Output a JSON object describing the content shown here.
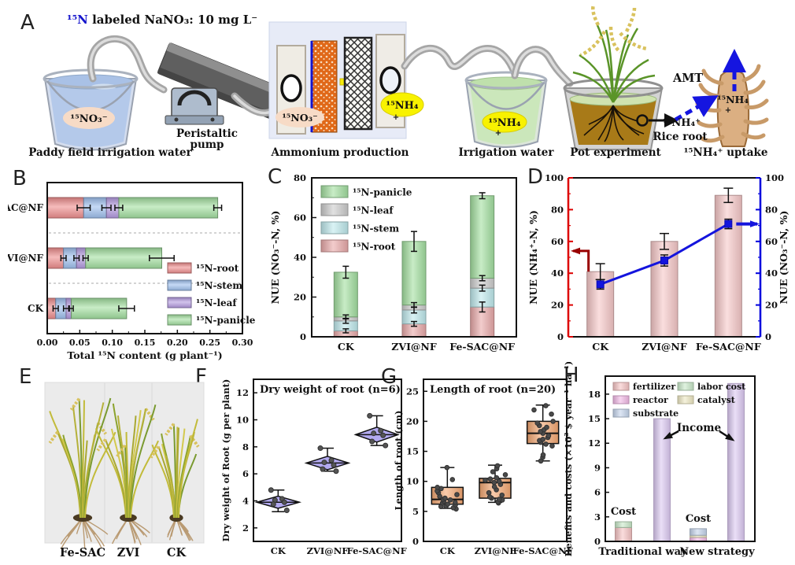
{
  "figure": {
    "panel_labels": {
      "a": "A",
      "b": "B",
      "c": "C",
      "d": "D",
      "e": "E",
      "f": "F",
      "g": "G",
      "h": "H"
    }
  },
  "panel_a": {
    "title_isotope": "¹⁵N",
    "title_rest": " labeled NaNO₃: 10 mg L⁻",
    "bucket1_label": "¹⁵NO₃⁻",
    "bucket1_caption": "Paddy field irrigation water",
    "pump_caption_1": "Peristaltic",
    "pump_caption_2": "pump",
    "cell_left_label": "¹⁵NO₃⁻",
    "cell_right_label": "¹⁵NH₄",
    "cell_right_sub": "+",
    "cell_caption": "Ammonium production",
    "bucket2_label": "¹⁵NH₄",
    "bucket2_sub": "+",
    "bucket2_caption": "Irrigation water",
    "pot_caption": "Pot experiment",
    "amt_label": "AMT",
    "root_label": "¹⁵NH₄",
    "root_label_sub": "+",
    "ion_label": "¹⁵NH₄⁺",
    "rice_root_label": "Rice root",
    "uptake_caption": "¹⁵NH₄⁺ uptake"
  },
  "panel_e": {
    "labels": [
      "Fe-SAC",
      "ZVI",
      "CK"
    ]
  },
  "chart_data": [
    {
      "id": "B",
      "type": "hbar-stacked",
      "categories": [
        "CK",
        "ZVI@NF",
        "e-SAC@NF"
      ],
      "series": [
        {
          "name": "¹⁵N-root",
          "color": "#ee8e8e",
          "values": [
            0.013,
            0.025,
            0.056
          ]
        },
        {
          "name": "¹⁵N-stem",
          "color": "#9fc0ee",
          "values": [
            0.016,
            0.02,
            0.035
          ]
        },
        {
          "name": "¹⁵N-leaf",
          "color": "#b49be0",
          "values": [
            0.008,
            0.014,
            0.019
          ]
        },
        {
          "name": "¹⁵N-panicle",
          "color": "#a3dfa0",
          "values": [
            0.085,
            0.117,
            0.152
          ]
        }
      ],
      "error_caps": [
        [
          [
            0.013,
            0.004
          ],
          [
            0.029,
            0.004
          ],
          [
            0.037,
            0.003
          ],
          [
            0.122,
            0.012
          ]
        ],
        [
          [
            0.025,
            0.004
          ],
          [
            0.045,
            0.004
          ],
          [
            0.059,
            0.004
          ],
          [
            0.176,
            0.019
          ]
        ],
        [
          [
            0.056,
            0.01
          ],
          [
            0.091,
            0.007
          ],
          [
            0.11,
            0.006
          ],
          [
            0.262,
            0.006
          ]
        ]
      ],
      "xlabel": "Total ¹⁵N content (g plant⁻¹)",
      "xlim": [
        0,
        0.3
      ],
      "xticks": [
        0,
        0.05,
        0.1,
        0.15,
        0.2,
        0.25,
        0.3
      ],
      "grid": false,
      "legend_position": "bottom-right"
    },
    {
      "id": "C",
      "type": "vbar-stacked",
      "categories": [
        "CK",
        "ZVI@NF",
        "Fe-SAC@NF"
      ],
      "series": [
        {
          "name": "¹⁵N-root",
          "color": "#e9aaaa",
          "values": [
            3,
            6.5,
            15
          ]
        },
        {
          "name": "¹⁵N-stem",
          "color": "#bfe9ec",
          "values": [
            5,
            7,
            9.5
          ]
        },
        {
          "name": "¹⁵N-leaf",
          "color": "#cdcdcd",
          "values": [
            2,
            2.5,
            5
          ]
        },
        {
          "name": "¹⁵N-panicle",
          "color": "#a3dfa0",
          "values": [
            22.5,
            32,
            41.5
          ]
        }
      ],
      "error_caps": [
        [
          [
            3,
            1
          ],
          [
            8,
            1.2
          ],
          [
            10,
            1
          ],
          [
            32.5,
            3
          ]
        ],
        [
          [
            6.5,
            1.2
          ],
          [
            13.5,
            1.5
          ],
          [
            16,
            1.2
          ],
          [
            48,
            5
          ]
        ],
        [
          [
            15,
            2.5
          ],
          [
            24.5,
            1.5
          ],
          [
            29.5,
            1.3
          ],
          [
            71,
            1.5
          ]
        ]
      ],
      "ylabel": "NUE (NO₃⁻-N, %)",
      "ylim": [
        0,
        80
      ],
      "yticks": [
        0,
        20,
        40,
        60,
        80
      ],
      "grid": false,
      "legend_position": "top-left"
    },
    {
      "id": "D",
      "type": "bar-line-dual",
      "categories": [
        "CK",
        "ZVI@NF",
        "Fe-SAC@NF"
      ],
      "bars": {
        "name": "NUE (NH₄⁺-N, %)",
        "color": "#f6c8c8",
        "values": [
          41,
          60,
          89
        ],
        "errors": [
          5,
          5,
          4.5
        ]
      },
      "line": {
        "name": "NUE (NO₃⁻-N, %)",
        "color": "#1414dd",
        "values": [
          33,
          48,
          71
        ],
        "errors": [
          3,
          3.5,
          3
        ]
      },
      "ylabel_left": "NUE (NH₄⁺-N, %)",
      "ylabel_right": "NUE (NO₃⁻-N, %)",
      "left_axis_color": "#dd0000",
      "right_axis_color": "#0000dd",
      "arrow_left_color": "#990000",
      "ylim": [
        0,
        100
      ],
      "yticks": [
        0,
        20,
        40,
        60,
        80,
        100
      ]
    },
    {
      "id": "F",
      "type": "diamond-scatter",
      "title": "Dry weight of root (n=6)",
      "categories": [
        "CK",
        "ZVI@NF",
        "Fe-SAC@NF"
      ],
      "color": "#b3aaf0",
      "stats": [
        {
          "center": 3.9,
          "hh": 0.45,
          "lo": 3.2,
          "hi": 4.8
        },
        {
          "center": 6.8,
          "hh": 0.5,
          "lo": 6.2,
          "hi": 7.9
        },
        {
          "center": 8.9,
          "hh": 0.55,
          "lo": 8.1,
          "hi": 10.3
        }
      ],
      "points": [
        [
          4.8,
          4.15,
          4.05,
          3.9,
          3.75,
          3.3
        ],
        [
          7.9,
          7.0,
          6.85,
          6.65,
          6.35,
          6.2
        ],
        [
          10.3,
          9.2,
          9.0,
          8.85,
          8.4,
          8.1
        ]
      ],
      "ylabel": "Dry weight of Root (g per plant)",
      "ylim": [
        1,
        13
      ],
      "yticks": [
        2,
        4,
        6,
        8,
        10,
        12
      ]
    },
    {
      "id": "G",
      "type": "box-scatter",
      "title": "Length of root (n=20)",
      "categories": [
        "CK",
        "ZVI@NF",
        "Fe-SAC@NF"
      ],
      "color": "#f5a873",
      "boxes": [
        {
          "lo": 5.5,
          "q1": 6.2,
          "med": 7.0,
          "q3": 9.0,
          "hi": 12.3
        },
        {
          "lo": 6.5,
          "q1": 7.2,
          "med": 9.8,
          "q3": 10.5,
          "hi": 12.7
        },
        {
          "lo": 13.4,
          "q1": 16.3,
          "med": 18.0,
          "q3": 20.0,
          "hi": 22.7
        }
      ],
      "points": [
        [
          5.4,
          5.6,
          5.8,
          5.9,
          6.1,
          6.2,
          6.4,
          6.5,
          6.7,
          6.9,
          7.0,
          7.2,
          7.5,
          7.8,
          8.1,
          8.4,
          8.8,
          9.0,
          10.3,
          12.3
        ],
        [
          6.4,
          6.6,
          6.9,
          7.0,
          7.2,
          7.4,
          7.7,
          8.1,
          8.6,
          9.1,
          9.5,
          9.8,
          10.0,
          10.2,
          10.4,
          10.6,
          11.1,
          11.6,
          12.1,
          12.6
        ],
        [
          13.4,
          14.0,
          14.4,
          15.9,
          16.2,
          16.5,
          16.8,
          17.0,
          17.3,
          17.6,
          18.0,
          18.3,
          18.6,
          19.0,
          19.3,
          19.7,
          20.0,
          21.2,
          21.9,
          22.6
        ]
      ],
      "ylabel": "Length of root (cm)",
      "ylim": [
        0,
        27
      ],
      "yticks": [
        0,
        5,
        10,
        15,
        20,
        25
      ]
    },
    {
      "id": "H",
      "type": "cost-benefit",
      "groups": [
        "Traditional way",
        "New strategy"
      ],
      "legend": [
        {
          "name": "fertilizer",
          "color": "#f6c5c5"
        },
        {
          "name": "reactor",
          "color": "#f2b9e6"
        },
        {
          "name": "substrate",
          "color": "#c6d6ec"
        },
        {
          "name": "labor cost",
          "color": "#c9e9c9"
        },
        {
          "name": "catalyst",
          "color": "#efe9c4"
        }
      ],
      "cost_stacks": [
        [
          [
            "fertilizer",
            1.7
          ],
          [
            "labor cost",
            0.7
          ]
        ],
        [
          [
            "reactor",
            0.5
          ],
          [
            "catalyst",
            0.25
          ],
          [
            "substrate",
            0.8
          ]
        ]
      ],
      "income": [
        15.0,
        19.3
      ],
      "income_color": "#dcc9f2",
      "cost_label": "Cost",
      "income_label": "Income",
      "ylabel": "Benefits and costs (×10³ $ year⁻¹ ha⁻¹)",
      "ylim": [
        0,
        20.2
      ],
      "yticks": [
        0,
        3,
        6,
        9,
        12,
        15,
        18
      ]
    }
  ]
}
